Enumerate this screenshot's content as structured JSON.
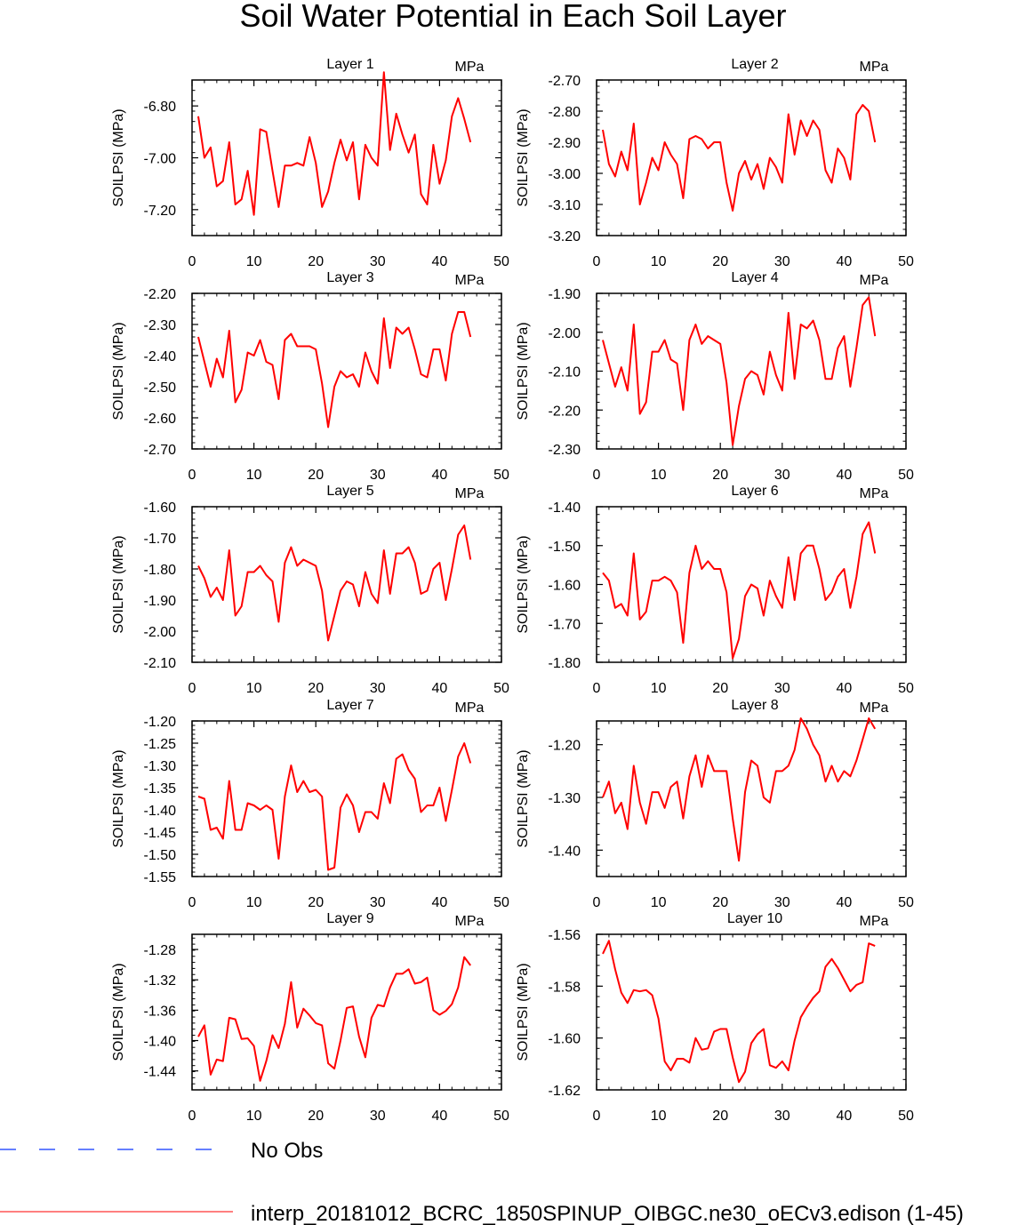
{
  "title": "Soil Water Potential in Each Soil Layer",
  "series_color": "#ff0000",
  "obs_color": "#3355ff",
  "legend": {
    "obs_label": "No Obs",
    "model_label": "interp_20181012_BCRC_1850SPINUP_OIBGC.ne30_oECv3.edison (1-45)"
  },
  "chart_data": [
    {
      "type": "line",
      "title": "Layer 1",
      "units": "MPa",
      "ylabel": "SOILPSI  (MPa)",
      "xlim": [
        0,
        50
      ],
      "xticks": [
        0,
        10,
        20,
        30,
        40,
        50
      ],
      "ylim": [
        -7.3,
        -6.7
      ],
      "yticks": [
        -6.8,
        -7.0,
        -7.2
      ],
      "ytick_labels": [
        "-6.80",
        "-7.00",
        "-7.20"
      ],
      "x_start": 1,
      "values": [
        -6.84,
        -7.0,
        -6.96,
        -7.11,
        -7.09,
        -6.94,
        -7.18,
        -7.16,
        -7.05,
        -7.22,
        -6.89,
        -6.9,
        -7.05,
        -7.19,
        -7.03,
        -7.03,
        -7.02,
        -7.03,
        -6.92,
        -7.02,
        -7.19,
        -7.13,
        -7.02,
        -6.93,
        -7.01,
        -6.94,
        -7.16,
        -6.95,
        -7.0,
        -7.03,
        -6.67,
        -6.97,
        -6.83,
        -6.91,
        -6.98,
        -6.91,
        -7.14,
        -7.18,
        -6.95,
        -7.1,
        -7.01,
        -6.84,
        -6.77,
        -6.85,
        -6.94
      ]
    },
    {
      "type": "line",
      "title": "Layer 2",
      "units": "MPa",
      "ylabel": "SOILPSI  (MPa)",
      "xlim": [
        0,
        50
      ],
      "xticks": [
        0,
        10,
        20,
        30,
        40,
        50
      ],
      "ylim": [
        -3.2,
        -2.7
      ],
      "yticks": [
        -2.7,
        -2.8,
        -2.9,
        -3.0,
        -3.1,
        -3.2
      ],
      "ytick_labels": [
        "-2.70",
        "-2.80",
        "-2.90",
        "-3.00",
        "-3.10",
        "-3.20"
      ],
      "x_start": 1,
      "values": [
        -2.86,
        -2.97,
        -3.01,
        -2.93,
        -2.99,
        -2.84,
        -3.1,
        -3.03,
        -2.95,
        -2.99,
        -2.9,
        -2.94,
        -2.97,
        -3.08,
        -2.89,
        -2.88,
        -2.89,
        -2.92,
        -2.9,
        -2.9,
        -3.03,
        -3.12,
        -3.0,
        -2.96,
        -3.02,
        -2.97,
        -3.05,
        -2.95,
        -2.98,
        -3.03,
        -2.81,
        -2.94,
        -2.83,
        -2.88,
        -2.83,
        -2.86,
        -2.99,
        -3.03,
        -2.92,
        -2.95,
        -3.02,
        -2.81,
        -2.78,
        -2.8,
        -2.9
      ]
    },
    {
      "type": "line",
      "title": "Layer 3",
      "units": "MPa",
      "ylabel": "SOILPSI  (MPa)",
      "xlim": [
        0,
        50
      ],
      "xticks": [
        0,
        10,
        20,
        30,
        40,
        50
      ],
      "ylim": [
        -2.7,
        -2.2
      ],
      "yticks": [
        -2.2,
        -2.3,
        -2.4,
        -2.5,
        -2.6,
        -2.7
      ],
      "ytick_labels": [
        "-2.20",
        "-2.30",
        "-2.40",
        "-2.50",
        "-2.60",
        "-2.70"
      ],
      "x_start": 1,
      "values": [
        -2.34,
        -2.42,
        -2.5,
        -2.41,
        -2.47,
        -2.32,
        -2.55,
        -2.51,
        -2.39,
        -2.4,
        -2.35,
        -2.42,
        -2.43,
        -2.54,
        -2.35,
        -2.33,
        -2.37,
        -2.37,
        -2.37,
        -2.38,
        -2.49,
        -2.63,
        -2.5,
        -2.45,
        -2.47,
        -2.46,
        -2.5,
        -2.39,
        -2.45,
        -2.49,
        -2.28,
        -2.44,
        -2.31,
        -2.33,
        -2.31,
        -2.38,
        -2.46,
        -2.47,
        -2.38,
        -2.38,
        -2.48,
        -2.33,
        -2.26,
        -2.26,
        -2.34
      ]
    },
    {
      "type": "line",
      "title": "Layer 4",
      "units": "MPa",
      "ylabel": "SOILPSI  (MPa)",
      "xlim": [
        0,
        50
      ],
      "xticks": [
        0,
        10,
        20,
        30,
        40,
        50
      ],
      "ylim": [
        -2.3,
        -1.9
      ],
      "yticks": [
        -1.9,
        -2.0,
        -2.1,
        -2.2,
        -2.3
      ],
      "ytick_labels": [
        "-1.90",
        "-2.00",
        "-2.10",
        "-2.20",
        "-2.30"
      ],
      "x_start": 1,
      "values": [
        -2.02,
        -2.08,
        -2.14,
        -2.09,
        -2.15,
        -1.98,
        -2.21,
        -2.18,
        -2.05,
        -2.05,
        -2.02,
        -2.07,
        -2.08,
        -2.2,
        -2.02,
        -1.98,
        -2.03,
        -2.01,
        -2.02,
        -2.03,
        -2.13,
        -2.29,
        -2.19,
        -2.12,
        -2.1,
        -2.11,
        -2.16,
        -2.05,
        -2.11,
        -2.15,
        -1.95,
        -2.12,
        -1.98,
        -1.99,
        -1.97,
        -2.02,
        -2.12,
        -2.12,
        -2.04,
        -2.01,
        -2.14,
        -2.04,
        -1.93,
        -1.91,
        -2.01
      ]
    },
    {
      "type": "line",
      "title": "Layer 5",
      "units": "MPa",
      "ylabel": "SOILPSI  (MPa)",
      "xlim": [
        0,
        50
      ],
      "xticks": [
        0,
        10,
        20,
        30,
        40,
        50
      ],
      "ylim": [
        -2.1,
        -1.6
      ],
      "yticks": [
        -1.6,
        -1.7,
        -1.8,
        -1.9,
        -2.0,
        -2.1
      ],
      "ytick_labels": [
        "-1.60",
        "-1.70",
        "-1.80",
        "-1.90",
        "-2.00",
        "-2.10"
      ],
      "x_start": 1,
      "values": [
        -1.79,
        -1.83,
        -1.89,
        -1.86,
        -1.9,
        -1.74,
        -1.95,
        -1.92,
        -1.81,
        -1.81,
        -1.79,
        -1.82,
        -1.84,
        -1.97,
        -1.78,
        -1.73,
        -1.79,
        -1.77,
        -1.78,
        -1.79,
        -1.87,
        -2.03,
        -1.95,
        -1.87,
        -1.84,
        -1.85,
        -1.92,
        -1.81,
        -1.88,
        -1.91,
        -1.74,
        -1.88,
        -1.75,
        -1.75,
        -1.73,
        -1.78,
        -1.88,
        -1.87,
        -1.8,
        -1.78,
        -1.9,
        -1.8,
        -1.69,
        -1.66,
        -1.77
      ]
    },
    {
      "type": "line",
      "title": "Layer 6",
      "units": "MPa",
      "ylabel": "SOILPSI  (MPa)",
      "xlim": [
        0,
        50
      ],
      "xticks": [
        0,
        10,
        20,
        30,
        40,
        50
      ],
      "ylim": [
        -1.8,
        -1.4
      ],
      "yticks": [
        -1.4,
        -1.5,
        -1.6,
        -1.7,
        -1.8
      ],
      "ytick_labels": [
        "-1.40",
        "-1.50",
        "-1.60",
        "-1.70",
        "-1.80"
      ],
      "x_start": 1,
      "values": [
        -1.57,
        -1.59,
        -1.66,
        -1.65,
        -1.68,
        -1.52,
        -1.69,
        -1.67,
        -1.59,
        -1.59,
        -1.58,
        -1.59,
        -1.62,
        -1.75,
        -1.57,
        -1.5,
        -1.56,
        -1.54,
        -1.56,
        -1.56,
        -1.62,
        -1.79,
        -1.74,
        -1.63,
        -1.6,
        -1.61,
        -1.68,
        -1.59,
        -1.63,
        -1.66,
        -1.53,
        -1.64,
        -1.52,
        -1.5,
        -1.5,
        -1.56,
        -1.64,
        -1.62,
        -1.58,
        -1.56,
        -1.66,
        -1.58,
        -1.47,
        -1.44,
        -1.52
      ]
    },
    {
      "type": "line",
      "title": "Layer 7",
      "units": "MPa",
      "ylabel": "SOILPSI  (MPa)",
      "xlim": [
        0,
        50
      ],
      "xticks": [
        0,
        10,
        20,
        30,
        40,
        50
      ],
      "ylim": [
        -1.55,
        -1.2
      ],
      "yticks": [
        -1.2,
        -1.25,
        -1.3,
        -1.35,
        -1.4,
        -1.45,
        -1.5,
        -1.55
      ],
      "ytick_labels": [
        "-1.20",
        "-1.25",
        "-1.30",
        "-1.35",
        "-1.40",
        "-1.45",
        "-1.50",
        "-1.55"
      ],
      "x_start": 1,
      "values": [
        -1.37,
        -1.375,
        -1.445,
        -1.44,
        -1.465,
        -1.335,
        -1.445,
        -1.445,
        -1.385,
        -1.39,
        -1.4,
        -1.39,
        -1.4,
        -1.51,
        -1.37,
        -1.3,
        -1.36,
        -1.335,
        -1.36,
        -1.355,
        -1.37,
        -1.535,
        -1.53,
        -1.395,
        -1.365,
        -1.39,
        -1.45,
        -1.405,
        -1.405,
        -1.42,
        -1.34,
        -1.385,
        -1.285,
        -1.275,
        -1.31,
        -1.33,
        -1.405,
        -1.39,
        -1.39,
        -1.35,
        -1.425,
        -1.355,
        -1.28,
        -1.25,
        -1.295
      ]
    },
    {
      "type": "line",
      "title": "Layer 8",
      "units": "MPa",
      "ylabel": "SOILPSI  (MPa)",
      "xlim": [
        0,
        50
      ],
      "xticks": [
        0,
        10,
        20,
        30,
        40,
        50
      ],
      "ylim": [
        -1.45,
        -1.155
      ],
      "yticks": [
        -1.2,
        -1.3,
        -1.4
      ],
      "ytick_labels": [
        "-1.20",
        "-1.30",
        "-1.40"
      ],
      "x_start": 1,
      "values": [
        -1.3,
        -1.27,
        -1.33,
        -1.31,
        -1.36,
        -1.24,
        -1.31,
        -1.35,
        -1.29,
        -1.29,
        -1.32,
        -1.28,
        -1.27,
        -1.34,
        -1.26,
        -1.22,
        -1.28,
        -1.22,
        -1.25,
        -1.25,
        -1.25,
        -1.34,
        -1.42,
        -1.29,
        -1.23,
        -1.24,
        -1.3,
        -1.31,
        -1.25,
        -1.25,
        -1.24,
        -1.21,
        -1.15,
        -1.17,
        -1.2,
        -1.22,
        -1.27,
        -1.24,
        -1.27,
        -1.25,
        -1.26,
        -1.23,
        -1.19,
        -1.15,
        -1.17
      ]
    },
    {
      "type": "line",
      "title": "Layer 9",
      "units": "MPa",
      "ylabel": "SOILPSI  (MPa)",
      "xlim": [
        0,
        50
      ],
      "xticks": [
        0,
        10,
        20,
        30,
        40,
        50
      ],
      "ylim": [
        -1.465,
        -1.26
      ],
      "yticks": [
        -1.28,
        -1.32,
        -1.36,
        -1.4,
        -1.44
      ],
      "ytick_labels": [
        "-1.28",
        "-1.32",
        "-1.36",
        "-1.40",
        "-1.44"
      ],
      "x_start": 1,
      "values": [
        -1.395,
        -1.38,
        -1.445,
        -1.425,
        -1.427,
        -1.37,
        -1.372,
        -1.398,
        -1.397,
        -1.407,
        -1.453,
        -1.427,
        -1.393,
        -1.41,
        -1.378,
        -1.323,
        -1.383,
        -1.358,
        -1.367,
        -1.377,
        -1.38,
        -1.43,
        -1.437,
        -1.4,
        -1.357,
        -1.355,
        -1.395,
        -1.422,
        -1.37,
        -1.353,
        -1.355,
        -1.33,
        -1.312,
        -1.312,
        -1.306,
        -1.325,
        -1.323,
        -1.317,
        -1.36,
        -1.366,
        -1.361,
        -1.352,
        -1.33,
        -1.29,
        -1.301
      ]
    },
    {
      "type": "line",
      "title": "Layer 10",
      "units": "MPa",
      "ylabel": "SOILPSI  (MPa)",
      "xlim": [
        0,
        50
      ],
      "xticks": [
        0,
        10,
        20,
        30,
        40,
        50
      ],
      "ylim": [
        -1.62,
        -1.56
      ],
      "yticks": [
        -1.56,
        -1.58,
        -1.6,
        -1.62
      ],
      "ytick_labels": [
        "-1.56",
        "-1.58",
        "-1.60",
        "-1.62"
      ],
      "x_start": 1,
      "values": [
        -1.5675,
        -1.5625,
        -1.5735,
        -1.5825,
        -1.5865,
        -1.5815,
        -1.582,
        -1.5815,
        -1.5835,
        -1.5925,
        -1.609,
        -1.6125,
        -1.608,
        -1.608,
        -1.6095,
        -1.6,
        -1.6045,
        -1.604,
        -1.5975,
        -1.5965,
        -1.5965,
        -1.6075,
        -1.617,
        -1.613,
        -1.602,
        -1.5985,
        -1.5965,
        -1.6105,
        -1.6115,
        -1.609,
        -1.6125,
        -1.601,
        -1.592,
        -1.588,
        -1.5845,
        -1.582,
        -1.5725,
        -1.5695,
        -1.573,
        -1.5775,
        -1.582,
        -1.5795,
        -1.5785,
        -1.5635,
        -1.5645
      ]
    }
  ]
}
